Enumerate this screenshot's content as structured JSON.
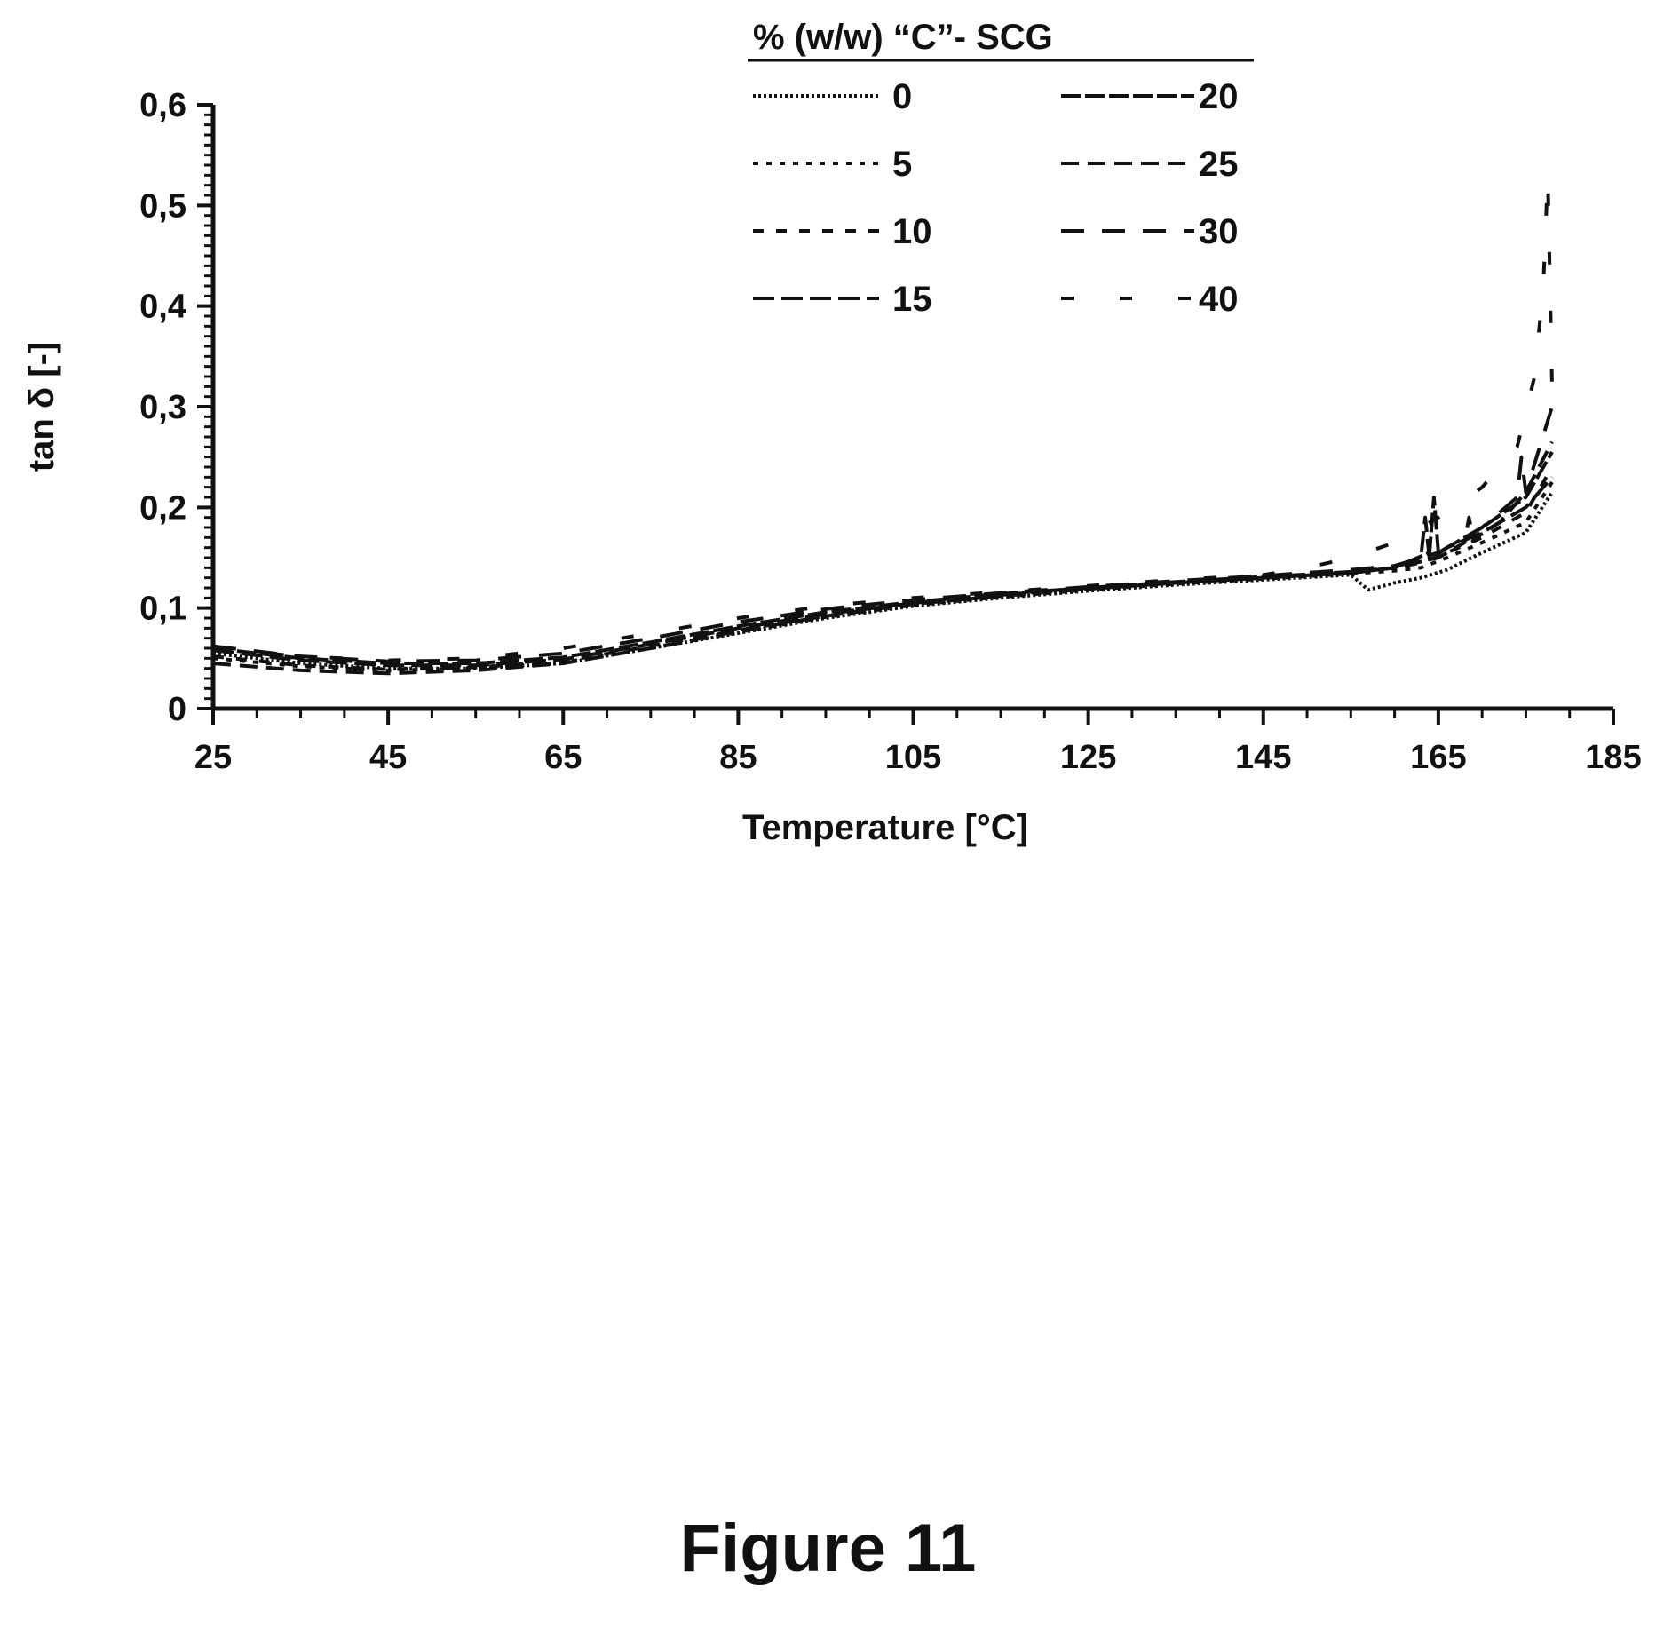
{
  "caption": "Figure 11",
  "chart_data": {
    "type": "line",
    "title": "",
    "xlabel": "Temperature [°C]",
    "ylabel": "tan δ [-]",
    "xlim": [
      25,
      185
    ],
    "ylim": [
      0,
      0.6
    ],
    "x_ticks": [
      "25",
      "45",
      "65",
      "85",
      "105",
      "125",
      "145",
      "165",
      "185"
    ],
    "y_ticks": [
      "0",
      "0,1",
      "0,2",
      "0,3",
      "0,4",
      "0,5",
      "0,6"
    ],
    "grid": false,
    "legend": {
      "title": "% (w/w) “C”- SCG",
      "placement": "top-right",
      "columns": 2
    },
    "series": [
      {
        "name": "0",
        "dash": "3 3",
        "x": [
          25,
          35,
          45,
          55,
          65,
          75,
          85,
          95,
          105,
          115,
          125,
          135,
          145,
          155,
          157,
          160,
          163,
          166,
          170,
          175,
          178
        ],
        "y": [
          0.055,
          0.045,
          0.04,
          0.04,
          0.045,
          0.06,
          0.075,
          0.09,
          0.102,
          0.11,
          0.117,
          0.123,
          0.128,
          0.133,
          0.118,
          0.125,
          0.13,
          0.138,
          0.155,
          0.175,
          0.215
        ]
      },
      {
        "name": "5",
        "dash": "6 9",
        "x": [
          25,
          35,
          45,
          55,
          65,
          75,
          85,
          95,
          105,
          115,
          125,
          135,
          145,
          155,
          160,
          163,
          166,
          170,
          175,
          178
        ],
        "y": [
          0.05,
          0.042,
          0.038,
          0.04,
          0.046,
          0.06,
          0.076,
          0.091,
          0.103,
          0.111,
          0.118,
          0.124,
          0.129,
          0.134,
          0.137,
          0.14,
          0.15,
          0.165,
          0.185,
          0.225
        ]
      },
      {
        "name": "10",
        "dash": "12 14",
        "x": [
          25,
          35,
          45,
          55,
          65,
          75,
          85,
          95,
          105,
          115,
          125,
          135,
          145,
          155,
          160,
          163,
          166,
          170,
          175,
          178
        ],
        "y": [
          0.052,
          0.043,
          0.039,
          0.041,
          0.047,
          0.062,
          0.078,
          0.092,
          0.104,
          0.112,
          0.119,
          0.125,
          0.13,
          0.135,
          0.14,
          0.145,
          0.155,
          0.17,
          0.195,
          0.24
        ]
      },
      {
        "name": "15",
        "dash": "24 8",
        "x": [
          25,
          35,
          45,
          55,
          65,
          75,
          85,
          95,
          105,
          115,
          125,
          135,
          145,
          155,
          160,
          163,
          163.5,
          164,
          166,
          170,
          175,
          178
        ],
        "y": [
          0.058,
          0.048,
          0.043,
          0.043,
          0.049,
          0.064,
          0.08,
          0.094,
          0.105,
          0.113,
          0.119,
          0.125,
          0.13,
          0.135,
          0.14,
          0.15,
          0.19,
          0.148,
          0.16,
          0.175,
          0.2,
          0.23
        ]
      },
      {
        "name": "20",
        "dash": "22 5",
        "x": [
          25,
          35,
          45,
          55,
          65,
          75,
          85,
          95,
          105,
          115,
          125,
          135,
          145,
          155,
          160,
          164,
          164.5,
          165,
          168,
          170,
          175,
          178
        ],
        "y": [
          0.06,
          0.05,
          0.045,
          0.045,
          0.051,
          0.066,
          0.082,
          0.096,
          0.106,
          0.114,
          0.12,
          0.126,
          0.131,
          0.136,
          0.14,
          0.155,
          0.21,
          0.155,
          0.17,
          0.18,
          0.21,
          0.255
        ]
      },
      {
        "name": "25",
        "dash": "20 10",
        "x": [
          25,
          35,
          45,
          55,
          65,
          75,
          85,
          95,
          105,
          115,
          125,
          135,
          145,
          155,
          160,
          165,
          168,
          168.5,
          169,
          172,
          175,
          178
        ],
        "y": [
          0.045,
          0.038,
          0.035,
          0.038,
          0.045,
          0.06,
          0.077,
          0.092,
          0.104,
          0.112,
          0.119,
          0.125,
          0.13,
          0.135,
          0.14,
          0.15,
          0.165,
          0.19,
          0.168,
          0.185,
          0.215,
          0.265
        ]
      },
      {
        "name": "30",
        "dash": "26 20",
        "x": [
          25,
          35,
          45,
          55,
          65,
          75,
          85,
          95,
          105,
          115,
          125,
          135,
          145,
          155,
          160,
          165,
          170,
          174,
          174.5,
          175,
          178
        ],
        "y": [
          0.062,
          0.052,
          0.047,
          0.048,
          0.055,
          0.07,
          0.086,
          0.099,
          0.108,
          0.115,
          0.121,
          0.127,
          0.132,
          0.138,
          0.142,
          0.155,
          0.18,
          0.21,
          0.25,
          0.215,
          0.3
        ]
      },
      {
        "name": "40",
        "dash": "14 52",
        "x": [
          25,
          35,
          45,
          55,
          65,
          75,
          85,
          95,
          105,
          115,
          125,
          135,
          145,
          150,
          155,
          160,
          165,
          170,
          174,
          176,
          177,
          177.5,
          178
        ],
        "y": [
          0.06,
          0.052,
          0.048,
          0.05,
          0.06,
          0.075,
          0.09,
          0.102,
          0.11,
          0.116,
          0.122,
          0.128,
          0.133,
          0.14,
          0.15,
          0.165,
          0.19,
          0.22,
          0.26,
          0.33,
          0.42,
          0.53,
          0.32
        ]
      }
    ]
  }
}
